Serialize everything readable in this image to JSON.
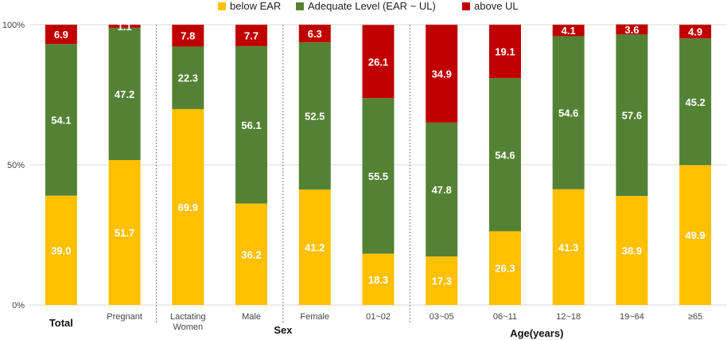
{
  "chart_data": {
    "type": "bar",
    "stacked": true,
    "percent_axis": true,
    "yticks": [
      "0%",
      "50%",
      "100%"
    ],
    "legend_position": "top",
    "categories": [
      "Total",
      "Pregnant",
      "Lactating Women",
      "Male",
      "Female",
      "01~02",
      "03~05",
      "06~11",
      "12~18",
      "19~64",
      "≥65"
    ],
    "category_lines": [
      [
        "Total"
      ],
      [
        "Pregnant"
      ],
      [
        "Lactating",
        "Women"
      ],
      [
        "Male"
      ],
      [
        "Female"
      ],
      [
        "01~02"
      ],
      [
        "03~05"
      ],
      [
        "06~11"
      ],
      [
        "12~18"
      ],
      [
        "19~64"
      ],
      [
        "≥65"
      ]
    ],
    "group_labels": [
      {
        "label": "Sex"
      },
      {
        "label": "Age(years)"
      }
    ],
    "series": [
      {
        "name": "below EAR",
        "color": "#ffc000",
        "values": [
          39.0,
          51.7,
          69.9,
          36.2,
          41.2,
          18.3,
          17.3,
          26.3,
          41.3,
          38.9,
          49.9
        ]
      },
      {
        "name": "Adequate Level (EAR ~ UL)",
        "color": "#548235",
        "values": [
          54.1,
          47.2,
          22.3,
          56.1,
          52.5,
          55.5,
          47.8,
          54.6,
          54.6,
          57.6,
          45.2
        ]
      },
      {
        "name": "above UL",
        "color": "#c00000",
        "values": [
          6.9,
          1.1,
          7.8,
          7.7,
          6.3,
          26.1,
          34.9,
          19.1,
          4.1,
          3.6,
          4.9
        ]
      }
    ]
  }
}
